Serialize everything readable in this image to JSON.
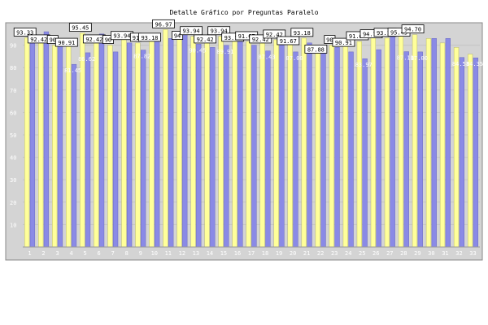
{
  "chart_data": {
    "type": "bar",
    "title": "Detalle Gráfico por Preguntas Paralelo",
    "xlabel": "",
    "ylabel": "",
    "ylim": [
      0,
      100
    ],
    "yticks": [
      10,
      20,
      30,
      40,
      50,
      60,
      70,
      80,
      90
    ],
    "grid": true,
    "colors": {
      "background": "#d4d4d4",
      "series_a": "#ffff9a",
      "series_b": "#8a8ae6",
      "label_box": "#ffffff"
    },
    "categories": [
      "1",
      "2",
      "3",
      "4",
      "5",
      "6",
      "7",
      "8",
      "9",
      "10",
      "11",
      "12",
      "13",
      "14",
      "15",
      "16",
      "17",
      "18",
      "19",
      "20",
      "21",
      "22",
      "23",
      "24",
      "25",
      "26",
      "27",
      "28",
      "29",
      "30",
      "31",
      "32",
      "33"
    ],
    "series": [
      {
        "values": [
          93.33,
          92.42,
          90.0,
          90.91,
          95.45,
          92.42,
          90.0,
          93.94,
          91.0,
          93.18,
          96.97,
          94.0,
          93.94,
          92.42,
          93.94,
          93.18,
          91.67,
          92.42,
          92.42,
          91.67,
          93.18,
          87.88,
          90.0,
          90.91,
          91.67,
          94.7,
          93.18,
          95.45,
          94.7,
          93.0,
          91.0,
          89.0,
          86.0
        ]
      },
      {
        "values": [
          95.0,
          96.0,
          93.0,
          81.45,
          86.62,
          95.0,
          87.0,
          91.0,
          87.82,
          92.0,
          93.0,
          97.0,
          90.45,
          89.0,
          89.91,
          94.0,
          90.0,
          87.43,
          90.0,
          87.0,
          91.0,
          89.0,
          89.0,
          87.0,
          83.97,
          88.0,
          95.0,
          87.11,
          87.0,
          93.0,
          93.0,
          84.51,
          84.35
        ]
      }
    ],
    "data_labels": [
      "93.33",
      "92.42",
      "90",
      "90.91",
      "95.45",
      "92.42",
      "90",
      "93.94",
      "91",
      "93.18",
      "96.97",
      "94",
      "93.94",
      "92.42",
      "93.94",
      "93.18",
      "91.67",
      "92.42",
      "92.42",
      "91.67",
      "93.18",
      "87.88",
      "90",
      "90.91",
      "91.67",
      "94.70",
      "93.18",
      "95.45",
      "94.70",
      "",
      "",
      "",
      ""
    ],
    "faint_labels": [
      "",
      "",
      "",
      "81.45",
      "86.62",
      "",
      "",
      "",
      "87.82",
      "",
      "",
      "",
      "90.45",
      "",
      "89.91",
      "",
      "",
      "87.43",
      "",
      "87.00",
      "",
      "",
      "",
      "",
      "83.97",
      "",
      "",
      "87.11",
      "87.00",
      "",
      "",
      "84.51",
      "84.35"
    ]
  }
}
